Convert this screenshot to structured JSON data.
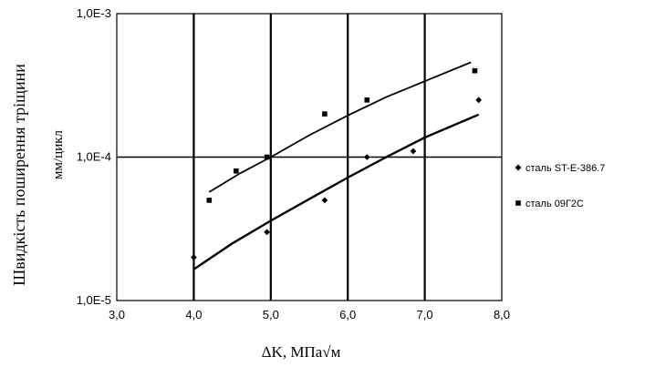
{
  "chart_data": {
    "type": "scatter",
    "y_scale": "log",
    "x_ticks": [
      "3,0",
      "4,0",
      "5,0",
      "6,0",
      "7,0",
      "8,0"
    ],
    "y_ticks": [
      "1,0E-5",
      "1,0E-4",
      "1,0E-3"
    ],
    "xlim": [
      3.0,
      8.0
    ],
    "ylim": [
      1e-05,
      0.001
    ],
    "ylabel_line1": "Швидкість поширення тріщини",
    "ylabel_line2": "мм/цикл",
    "xlabel": "ΔK, МПа√м",
    "series": [
      {
        "name": "сталь ST-E-386.7",
        "marker": "diamond",
        "points": [
          [
            4.0,
            2e-05
          ],
          [
            4.95,
            3e-05
          ],
          [
            5.7,
            5e-05
          ],
          [
            6.25,
            0.0001
          ],
          [
            6.85,
            0.00011
          ],
          [
            7.7,
            0.00025
          ]
        ],
        "trend": [
          [
            4.0,
            1.65e-05
          ],
          [
            4.5,
            2.5e-05
          ],
          [
            5.0,
            3.6e-05
          ],
          [
            5.5,
            5.1e-05
          ],
          [
            6.0,
            7.2e-05
          ],
          [
            6.5,
            0.0001
          ],
          [
            7.0,
            0.000137
          ],
          [
            7.7,
            0.000198
          ]
        ]
      },
      {
        "name": "сталь 09Г2С",
        "marker": "square",
        "points": [
          [
            4.2,
            5e-05
          ],
          [
            4.55,
            8e-05
          ],
          [
            4.95,
            0.0001
          ],
          [
            5.7,
            0.0002
          ],
          [
            6.25,
            0.00025
          ],
          [
            7.65,
            0.0004
          ]
        ],
        "trend": [
          [
            4.2,
            5.7e-05
          ],
          [
            4.6,
            7.7e-05
          ],
          [
            5.0,
            0.0001
          ],
          [
            5.5,
            0.000142
          ],
          [
            6.0,
            0.000195
          ],
          [
            6.5,
            0.000262
          ],
          [
            7.0,
            0.000338
          ],
          [
            7.6,
            0.000458
          ]
        ]
      }
    ]
  }
}
